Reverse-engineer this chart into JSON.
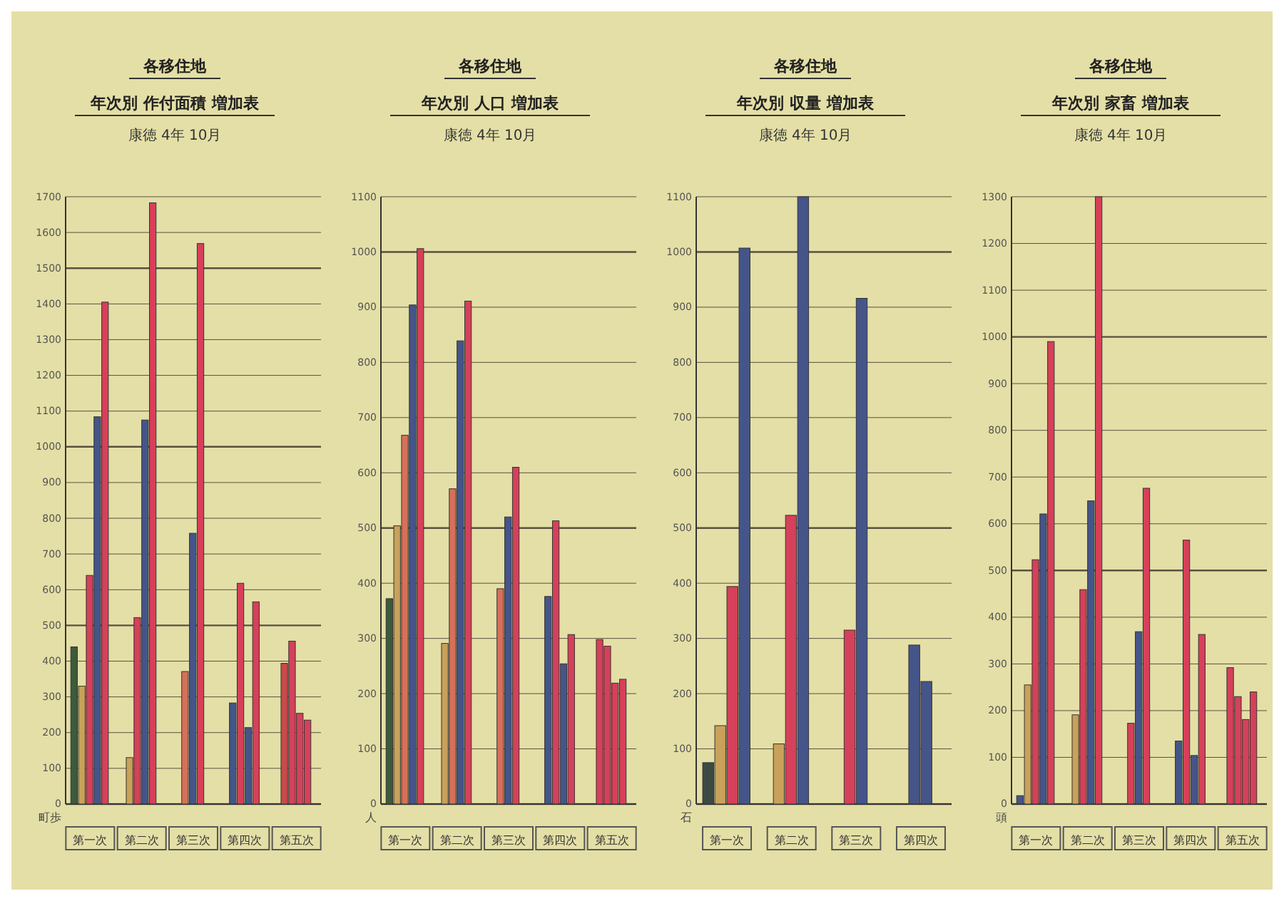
{
  "chart_data": [
    {
      "type": "bar",
      "title": "各移住地",
      "subtitle": "年次別 作付面積 増加表",
      "annotations": [
        "康徳 4年 10月"
      ],
      "ylabel": "町歩",
      "categories": [
        "第一次",
        "第二次",
        "第三次",
        "第四次",
        "第五次"
      ],
      "series": [
        {
          "colors": [
            "#3d5a3a",
            "#c9a15a",
            "#d6705a",
            "#45558a",
            "#c94a4a"
          ],
          "values": [
            440,
            130,
            371,
            283,
            394
          ]
        },
        {
          "colors": [
            "#c9a15a",
            "#d6405a",
            "#45558a",
            "#d6405a",
            "#d6405a"
          ],
          "values": [
            330,
            522,
            758,
            618,
            456
          ]
        },
        {
          "colors": [
            "#d6405a",
            "#45558a",
            "#d6405a",
            "#45558a",
            "#d6405a"
          ],
          "values": [
            640,
            1075,
            1569,
            214,
            254
          ]
        },
        {
          "colors": [
            "#45558a",
            "#d6405a",
            null,
            "#d6405a",
            "#d6405a"
          ],
          "values": [
            1084,
            1683,
            null,
            566,
            235
          ]
        },
        {
          "colors": [
            "#d6405a",
            null,
            null,
            null,
            null
          ],
          "values": [
            1405,
            null,
            null,
            null,
            null
          ]
        }
      ],
      "ylim": [
        0,
        1700
      ],
      "yticks": [
        0,
        100,
        200,
        300,
        400,
        500,
        600,
        700,
        800,
        900,
        1000,
        1100,
        1200,
        1300,
        1400,
        1500,
        1600,
        1700
      ],
      "grid": "y"
    },
    {
      "type": "bar",
      "title": "各移住地",
      "subtitle": "年次別 人口 増加表",
      "annotations": [
        "康徳 4年 10月"
      ],
      "ylabel": "人",
      "categories": [
        "第一次",
        "第二次",
        "第三次",
        "第四次",
        "第五次"
      ],
      "series": [
        {
          "colors": [
            "#3d5a3a",
            "#c9a15a",
            "#d6705a",
            "#45558a",
            "#d6405a"
          ],
          "values": [
            372,
            291,
            390,
            376,
            298
          ]
        },
        {
          "colors": [
            "#c9a15a",
            "#d6705a",
            "#45558a",
            "#d6405a",
            "#d6405a"
          ],
          "values": [
            504,
            571,
            520,
            513,
            286
          ]
        },
        {
          "colors": [
            "#d6705a",
            "#45558a",
            "#d6405a",
            "#45558a",
            "#d6405a"
          ],
          "values": [
            668,
            839,
            610,
            254,
            219
          ]
        },
        {
          "colors": [
            "#45558a",
            "#d6405a",
            null,
            "#d6405a",
            "#d6405a"
          ],
          "values": [
            904,
            911,
            null,
            307,
            226
          ]
        },
        {
          "colors": [
            "#d6405a",
            null,
            null,
            null,
            null
          ],
          "values": [
            1006,
            null,
            null,
            null,
            null
          ]
        }
      ],
      "ylim": [
        0,
        1100
      ],
      "yticks": [
        0,
        100,
        200,
        300,
        400,
        500,
        600,
        700,
        800,
        900,
        1000,
        1100
      ],
      "grid": "y"
    },
    {
      "type": "bar",
      "title": "各移住地",
      "subtitle": "年次別 収量 増加表",
      "annotations": [
        "康徳 4年 10月"
      ],
      "ylabel": "石",
      "categories": [
        "第一次",
        "第二次",
        "第三次",
        "第四次"
      ],
      "series": [
        {
          "colors": [
            "#3d4a44",
            "#c9a15a",
            "#d6405a",
            "#45558a"
          ],
          "values": [
            75,
            109,
            315,
            288
          ]
        },
        {
          "colors": [
            "#c9a15a",
            "#d6405a",
            "#45558a",
            "#45558a"
          ],
          "values": [
            142,
            523,
            916,
            222
          ]
        },
        {
          "colors": [
            "#d6405a",
            "#45558a",
            null,
            null
          ],
          "values": [
            394,
            1100,
            null,
            null
          ]
        },
        {
          "colors": [
            "#45558a",
            null,
            null,
            null
          ],
          "values": [
            1007,
            null,
            null,
            null
          ]
        }
      ],
      "ylim": [
        0,
        1100
      ],
      "yticks": [
        0,
        100,
        200,
        300,
        400,
        500,
        600,
        700,
        800,
        900,
        1000,
        1100
      ],
      "grid": "y"
    },
    {
      "type": "bar",
      "title": "各移住地",
      "subtitle": "年次別 家畜 増加表",
      "annotations": [
        "康徳 4年 10月"
      ],
      "ylabel": "頭",
      "categories": [
        "第一次",
        "第二次",
        "第三次",
        "第四次",
        "第五次"
      ],
      "series": [
        {
          "colors": [
            "#45558a",
            "#c9a15a",
            "#d6405a",
            "#45558a",
            "#d6405a"
          ],
          "values": [
            18,
            191,
            173,
            135,
            292
          ]
        },
        {
          "colors": [
            "#c9a15a",
            "#d6405a",
            "#45558a",
            "#d6405a",
            "#d6405a"
          ],
          "values": [
            255,
            459,
            369,
            565,
            230
          ]
        },
        {
          "colors": [
            "#d6405a",
            "#45558a",
            "#d6405a",
            "#45558a",
            "#d6405a"
          ],
          "values": [
            523,
            649,
            676,
            104,
            181
          ]
        },
        {
          "colors": [
            "#45558a",
            "#d6405a",
            null,
            "#d6405a",
            "#d6405a"
          ],
          "values": [
            621,
            1300,
            null,
            363,
            240
          ]
        },
        {
          "colors": [
            "#d6405a",
            null,
            null,
            null,
            null
          ],
          "values": [
            990,
            null,
            null,
            null,
            null
          ]
        }
      ],
      "ylim": [
        0,
        1300
      ],
      "yticks": [
        0,
        100,
        200,
        300,
        400,
        500,
        600,
        700,
        800,
        900,
        1000,
        1100,
        1200,
        1300
      ],
      "grid": "y"
    }
  ]
}
